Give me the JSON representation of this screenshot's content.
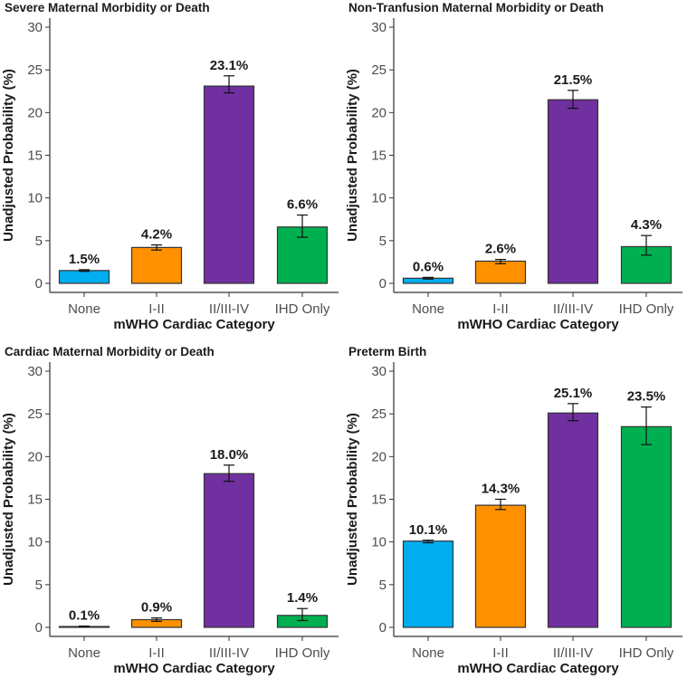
{
  "colors": {
    "None": "#00aeef",
    "I-II": "#ff9100",
    "II/III-IV": "#7030a0",
    "IHD Only": "#00b050",
    "axis": "#333333"
  },
  "chart_data": [
    {
      "type": "bar",
      "title": "Severe Maternal Morbidity or Death",
      "xlabel": "mWHO Cardiac Category",
      "ylabel": "Unadjusted Probability (%)",
      "ylim": [
        0,
        30
      ],
      "yticks": [
        0,
        5,
        10,
        15,
        20,
        25,
        30
      ],
      "categories": [
        "None",
        "I-II",
        "II/III-IV",
        "IHD Only"
      ],
      "values": [
        1.5,
        4.2,
        23.1,
        6.6
      ],
      "labels": [
        "1.5%",
        "4.2%",
        "23.1%",
        "6.6%"
      ],
      "error_low": [
        1.4,
        3.9,
        22.3,
        5.4
      ],
      "error_high": [
        1.6,
        4.5,
        24.3,
        8.0
      ]
    },
    {
      "type": "bar",
      "title": "Non-Tranfusion Maternal Morbidity or Death",
      "xlabel": "mWHO Cardiac Category",
      "ylabel": "Unadjusted Probability (%)",
      "ylim": [
        0,
        30
      ],
      "yticks": [
        0,
        5,
        10,
        15,
        20,
        25,
        30
      ],
      "categories": [
        "None",
        "I-II",
        "II/III-IV",
        "IHD Only"
      ],
      "values": [
        0.6,
        2.6,
        21.5,
        4.3
      ],
      "labels": [
        "0.6%",
        "2.6%",
        "21.5%",
        "4.3%"
      ],
      "error_low": [
        0.5,
        2.3,
        20.5,
        3.3
      ],
      "error_high": [
        0.7,
        2.8,
        22.6,
        5.6
      ]
    },
    {
      "type": "bar",
      "title": "Cardiac Maternal Morbidity or Death",
      "xlabel": "mWHO Cardiac Category",
      "ylabel": "Unadjusted Probability (%)",
      "ylim": [
        0,
        30
      ],
      "yticks": [
        0,
        5,
        10,
        15,
        20,
        25,
        30
      ],
      "categories": [
        "None",
        "I-II",
        "II/III-IV",
        "IHD Only"
      ],
      "values": [
        0.1,
        0.9,
        18.0,
        1.4
      ],
      "labels": [
        "0.1%",
        "0.9%",
        "18.0%",
        "1.4%"
      ],
      "error_low": [
        0.05,
        0.7,
        17.1,
        0.8
      ],
      "error_high": [
        0.15,
        1.1,
        19.0,
        2.2
      ]
    },
    {
      "type": "bar",
      "title": "Preterm Birth",
      "xlabel": "mWHO Cardiac Category",
      "ylabel": "Unadjusted Probability (%)",
      "ylim": [
        0,
        30
      ],
      "yticks": [
        0,
        5,
        10,
        15,
        20,
        25,
        30
      ],
      "categories": [
        "None",
        "I-II",
        "II/III-IV",
        "IHD Only"
      ],
      "values": [
        10.1,
        14.3,
        25.1,
        23.5
      ],
      "labels": [
        "10.1%",
        "14.3%",
        "25.1%",
        "23.5%"
      ],
      "error_low": [
        9.9,
        13.8,
        24.2,
        21.4
      ],
      "error_high": [
        10.2,
        15.0,
        26.2,
        25.8
      ]
    }
  ]
}
